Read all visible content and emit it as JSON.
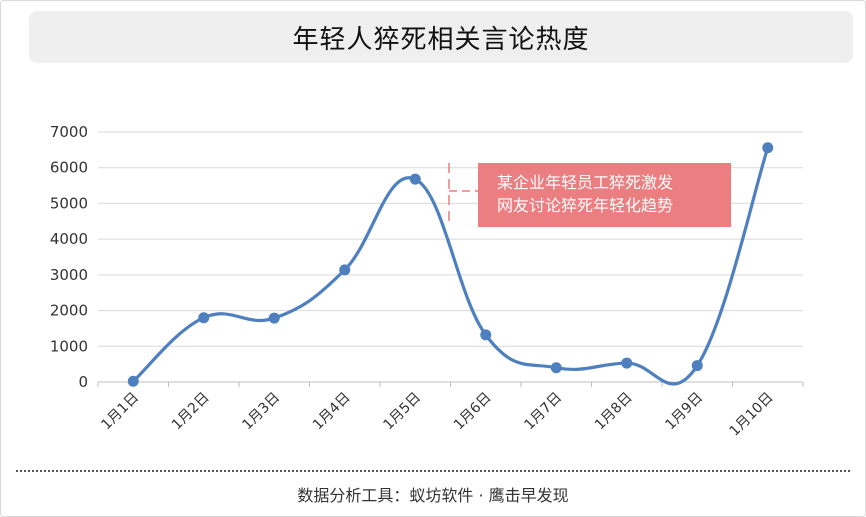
{
  "title": "年轻人猝死相关言论热度",
  "annotation": {
    "line1": "某企业年轻员工猝死激发",
    "line2": "网友讨论猝死年轻化趋势",
    "color": "#ea7e80"
  },
  "footer": "数据分析工具：蚁坊软件 · 鹰击早发现",
  "chart_data": {
    "type": "line",
    "title": "年轻人猝死相关言论热度",
    "categories": [
      "1月1日",
      "1月2日",
      "1月3日",
      "1月4日",
      "1月5日",
      "1月6日",
      "1月7日",
      "1月8日",
      "1月9日",
      "1月10日"
    ],
    "series": [
      {
        "values": [
          20,
          1800,
          1790,
          3140,
          5680,
          1320,
          400,
          530,
          460,
          6560
        ],
        "color": "#4e7fbf"
      }
    ],
    "y_ticks": [
      0,
      1000,
      2000,
      3000,
      4000,
      5000,
      6000,
      7000
    ],
    "ylim": [
      0,
      7000
    ],
    "smooth": true,
    "grid": true,
    "legend": "none"
  }
}
